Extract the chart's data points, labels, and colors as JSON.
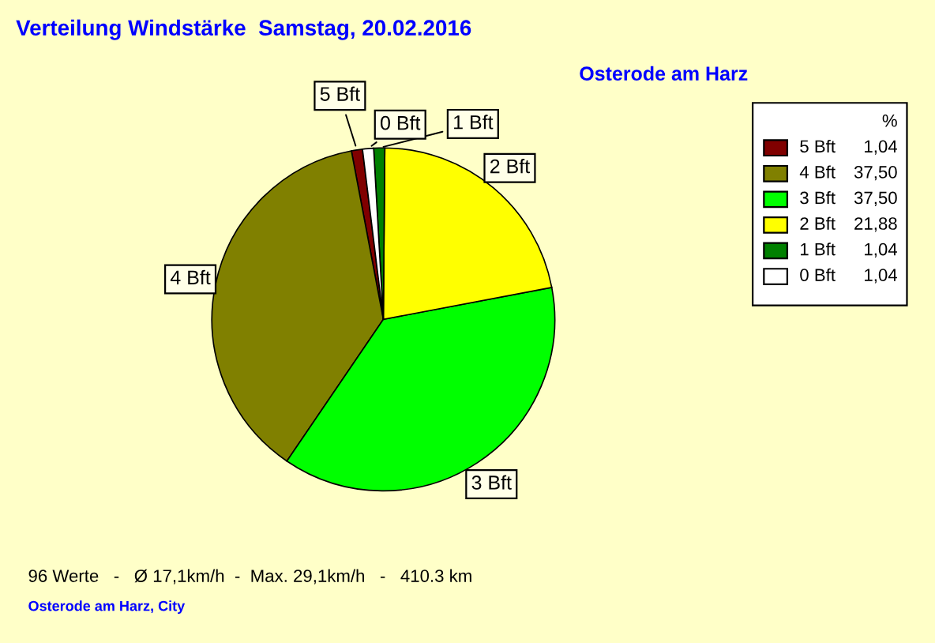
{
  "chart_data": {
    "type": "pie",
    "title": "Verteilung Windstärke  Samstag, 20.02.2016",
    "subtitle": "Osterode am Harz",
    "categories": [
      "5 Bft",
      "4 Bft",
      "3 Bft",
      "2 Bft",
      "1 Bft",
      "0 Bft"
    ],
    "values": [
      1.04,
      37.5,
      37.5,
      21.88,
      1.04,
      1.04
    ],
    "value_labels": [
      "1,04",
      "37,50",
      "37,50",
      "21,88",
      "1,04",
      "1,04"
    ],
    "colors": [
      "#800000",
      "#808000",
      "#00ff00",
      "#ffff00",
      "#008000",
      "#ffffff"
    ],
    "legend": "top right",
    "legend_title": "%",
    "annotations": [
      "96 Werte   -   Ø 17,1km/h  -  Max. 29,1km/h   -   410.3 km",
      "Osterode am Harz, City"
    ]
  }
}
